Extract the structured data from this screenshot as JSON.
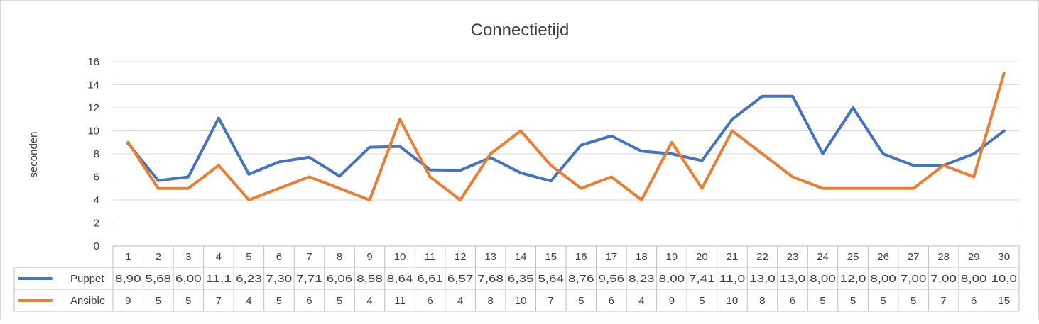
{
  "chart_data": {
    "type": "line",
    "title": "Connectietijd",
    "ylabel": "seconden",
    "xlabel": "",
    "ylim": [
      0,
      16
    ],
    "yticks": [
      0,
      2,
      4,
      6,
      8,
      10,
      12,
      14,
      16
    ],
    "grid": true,
    "legend": "data-table",
    "categories": [
      "1",
      "2",
      "3",
      "4",
      "5",
      "6",
      "7",
      "8",
      "9",
      "10",
      "11",
      "12",
      "13",
      "14",
      "15",
      "16",
      "17",
      "18",
      "19",
      "20",
      "21",
      "22",
      "23",
      "24",
      "25",
      "26",
      "27",
      "28",
      "29",
      "30"
    ],
    "series": [
      {
        "name": "Puppet",
        "color": "#4472C4",
        "values": [
          8.9,
          5.68,
          6.0,
          11.1,
          6.23,
          7.3,
          7.71,
          6.06,
          8.58,
          8.64,
          6.61,
          6.57,
          7.68,
          6.35,
          5.64,
          8.76,
          9.56,
          8.23,
          8.0,
          7.41,
          11.0,
          13.0,
          13.0,
          8.0,
          12.0,
          8.0,
          7.0,
          7.0,
          8.0,
          10.0
        ],
        "table_labels": [
          "8,90",
          "5,68",
          "6,00",
          "11,1",
          "6,23",
          "7,30",
          "7,71",
          "6,06",
          "8,58",
          "8,64",
          "6,61",
          "6,57",
          "7,68",
          "6,35",
          "5,64",
          "8,76",
          "9,56",
          "8,23",
          "8,00",
          "7,41",
          "11,0",
          "13,0",
          "13,0",
          "8,00",
          "12,0",
          "8,00",
          "7,00",
          "7,00",
          "8,00",
          "10,0"
        ]
      },
      {
        "name": "Ansible",
        "color": "#ED7D31",
        "values": [
          9,
          5,
          5,
          7,
          4,
          5,
          6,
          5,
          4,
          11,
          6,
          4,
          8,
          10,
          7,
          5,
          6,
          4,
          9,
          5,
          10,
          8,
          6,
          5,
          5,
          5,
          5,
          7,
          6,
          15
        ],
        "table_labels": [
          "9",
          "5",
          "5",
          "7",
          "4",
          "5",
          "6",
          "5",
          "4",
          "11",
          "6",
          "4",
          "8",
          "10",
          "7",
          "5",
          "6",
          "4",
          "9",
          "5",
          "10",
          "8",
          "6",
          "5",
          "5",
          "5",
          "5",
          "7",
          "6",
          "15"
        ]
      }
    ]
  }
}
